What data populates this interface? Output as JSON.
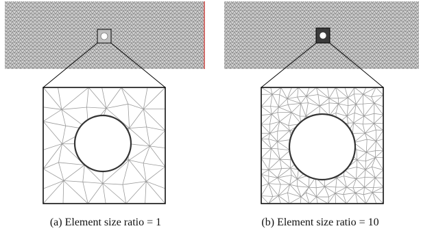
{
  "panels": [
    {
      "id": "a",
      "caption": "(a) Element size ratio = 1",
      "element_size_ratio": 1
    },
    {
      "id": "b",
      "caption": "(b) Element size ratio = 10",
      "element_size_ratio": 10
    }
  ],
  "colors": {
    "strip_fill": "#cfcfcf",
    "strip_mesh": "#555555",
    "zoom_mesh": "#9a9a9a",
    "outline": "#000000",
    "boundary_marker": "#d9534f"
  }
}
